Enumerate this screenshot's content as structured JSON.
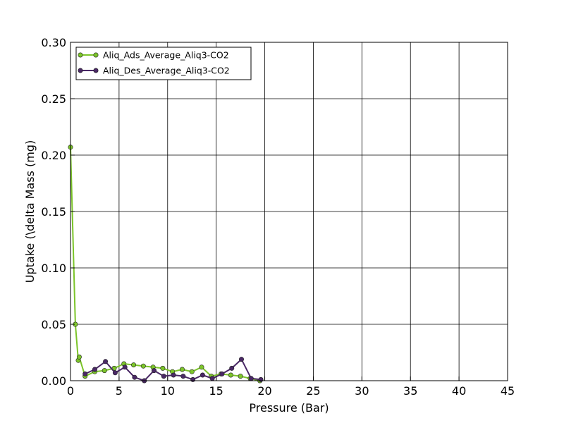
{
  "chart_data": {
    "type": "line",
    "xlabel": "Pressure (Bar)",
    "ylabel": "Uptake (\\delta Mass (mg)",
    "xlim": [
      0,
      45
    ],
    "ylim": [
      0,
      0.3
    ],
    "xticks": [
      "0",
      "5",
      "10",
      "15",
      "20",
      "25",
      "30",
      "35",
      "40",
      "45"
    ],
    "yticks": [
      "0.00",
      "0.05",
      "0.10",
      "0.15",
      "0.20",
      "0.25",
      "0.30"
    ],
    "grid": true,
    "legend_position": "top-left",
    "series": [
      {
        "name": "Aliq_Ads_Average_Aliq3-CO2",
        "color": "#7cc52a",
        "x": [
          0.0,
          0.5,
          0.8,
          0.9,
          1.5,
          2.5,
          3.5,
          4.5,
          5.5,
          6.5,
          7.5,
          8.5,
          9.5,
          10.5,
          11.5,
          12.5,
          13.5,
          14.5,
          15.5,
          16.5,
          17.5,
          18.5,
          19.5
        ],
        "y": [
          0.207,
          0.05,
          0.018,
          0.021,
          0.004,
          0.008,
          0.009,
          0.011,
          0.015,
          0.014,
          0.013,
          0.012,
          0.011,
          0.008,
          0.01,
          0.008,
          0.012,
          0.004,
          0.006,
          0.005,
          0.004,
          0.002,
          0.0
        ]
      },
      {
        "name": "Aliq_Des_Average_Aliq3-CO2",
        "color": "#4a2866",
        "x": [
          1.5,
          2.5,
          3.6,
          4.6,
          5.6,
          6.6,
          7.6,
          8.6,
          9.6,
          10.6,
          11.6,
          12.6,
          13.6,
          14.6,
          15.6,
          16.6,
          17.6,
          18.6,
          19.6
        ],
        "y": [
          0.006,
          0.01,
          0.017,
          0.007,
          0.012,
          0.003,
          0.0,
          0.009,
          0.004,
          0.005,
          0.004,
          0.001,
          0.005,
          0.002,
          0.006,
          0.011,
          0.019,
          0.002,
          0.001
        ]
      }
    ]
  }
}
